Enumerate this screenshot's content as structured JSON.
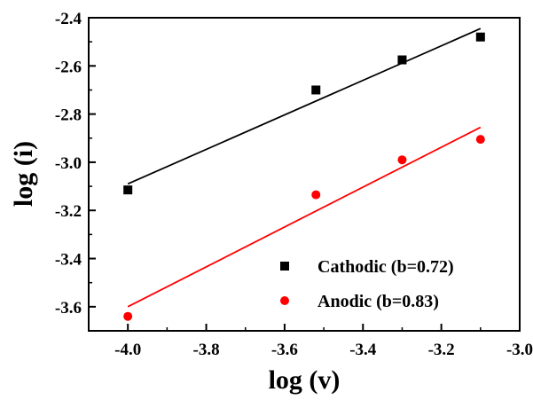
{
  "chart_data": {
    "type": "scatter",
    "xlabel": "log (v)",
    "ylabel": "log (i)",
    "xlim": [
      -4.1,
      -3.0
    ],
    "ylim": [
      -3.7,
      -2.4
    ],
    "x_ticks": [
      -4.0,
      -3.8,
      -3.6,
      -3.4,
      -3.2,
      -3.0
    ],
    "y_ticks": [
      -2.4,
      -2.6,
      -2.8,
      -3.0,
      -3.2,
      -3.4,
      -3.6
    ],
    "x_tick_labels": [
      "-4.0",
      "-3.8",
      "-3.6",
      "-3.4",
      "-3.2",
      "-3.0"
    ],
    "y_tick_labels": [
      "-2.4",
      "-2.6",
      "-2.8",
      "-3.0",
      "-3.2",
      "-3.4",
      "-3.6"
    ],
    "grid": false,
    "legend_position": "bottom-right",
    "series": [
      {
        "name": "Cathodic (b=0.72)",
        "marker": "square",
        "color": "#000000",
        "x": [
          -4.0,
          -3.52,
          -3.3,
          -3.1
        ],
        "y": [
          -3.115,
          -2.7,
          -2.575,
          -2.48
        ],
        "fit": {
          "x": [
            -4.0,
            -3.1
          ],
          "y": [
            -3.09,
            -2.445
          ]
        }
      },
      {
        "name": "Anodic (b=0.83)",
        "marker": "circle",
        "color": "#ff0000",
        "x": [
          -4.0,
          -3.52,
          -3.3,
          -3.1
        ],
        "y": [
          -3.64,
          -3.135,
          -2.99,
          -2.905
        ],
        "fit": {
          "x": [
            -4.0,
            -3.1
          ],
          "y": [
            -3.6,
            -2.855
          ]
        }
      }
    ]
  }
}
